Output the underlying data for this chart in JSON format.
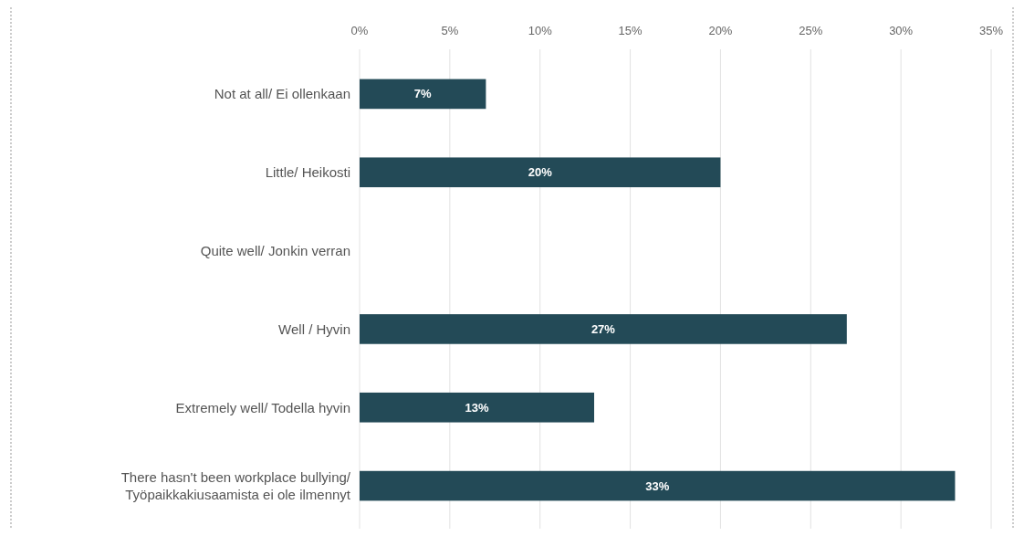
{
  "chart_data": {
    "type": "bar",
    "orientation": "horizontal",
    "categories": [
      "Not at all/ Ei ollenkaan",
      "Little/ Heikosti",
      "Quite well/ Jonkin verran",
      "Well / Hyvin",
      "Extremely well/ Todella hyvin",
      "There hasn't been workplace bullying/\nTyöpaikkakiusaamista ei ole ilmennyt"
    ],
    "values": [
      7,
      20,
      null,
      27,
      13,
      33
    ],
    "value_labels": [
      "7%",
      "20%",
      null,
      "27%",
      "13%",
      "33%"
    ],
    "color": "#234a57",
    "xlim": [
      0,
      35
    ],
    "xticks": [
      {
        "value": 0,
        "label": "0%"
      },
      {
        "value": 5,
        "label": "5%"
      },
      {
        "value": 10,
        "label": "10%"
      },
      {
        "value": 15,
        "label": "15%"
      },
      {
        "value": 20,
        "label": "20%"
      },
      {
        "value": 25,
        "label": "25%"
      },
      {
        "value": 30,
        "label": "30%"
      },
      {
        "value": 35,
        "label": "35%"
      }
    ],
    "grid": "x"
  }
}
